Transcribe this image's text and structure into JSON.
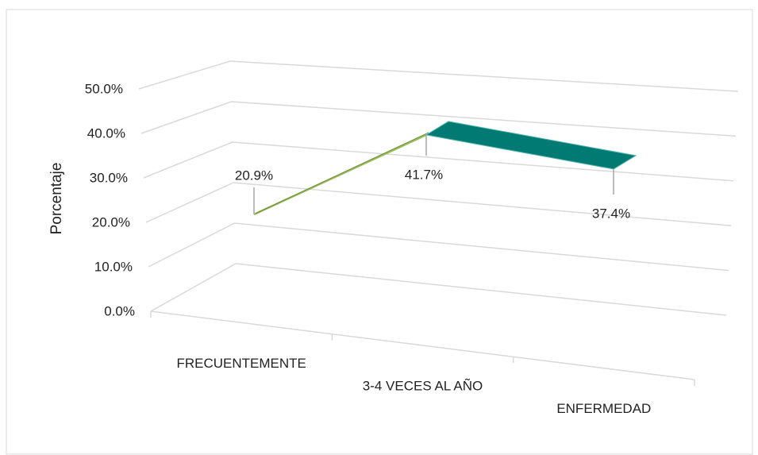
{
  "chart_data": {
    "type": "line3d",
    "y_label": "Porcentaje",
    "categories": [
      "FRECUENTEMENTE",
      "3-4 VECES AL AÑO",
      "ENFERMEDAD"
    ],
    "values": [
      20.9,
      41.7,
      37.4
    ],
    "value_labels": [
      "20.9%",
      "41.7%",
      "37.4%"
    ],
    "color": "#007a73",
    "rise_color": "#9bbb59",
    "ylim": [
      0,
      50
    ],
    "yticks": [
      {
        "value": 0,
        "label": "0.0%"
      },
      {
        "value": 10,
        "label": "10.0%"
      },
      {
        "value": 20,
        "label": "20.0%"
      },
      {
        "value": 30,
        "label": "30.0%"
      },
      {
        "value": 40,
        "label": "40.0%"
      },
      {
        "value": 50,
        "label": "50.0%"
      }
    ],
    "grid": true
  }
}
